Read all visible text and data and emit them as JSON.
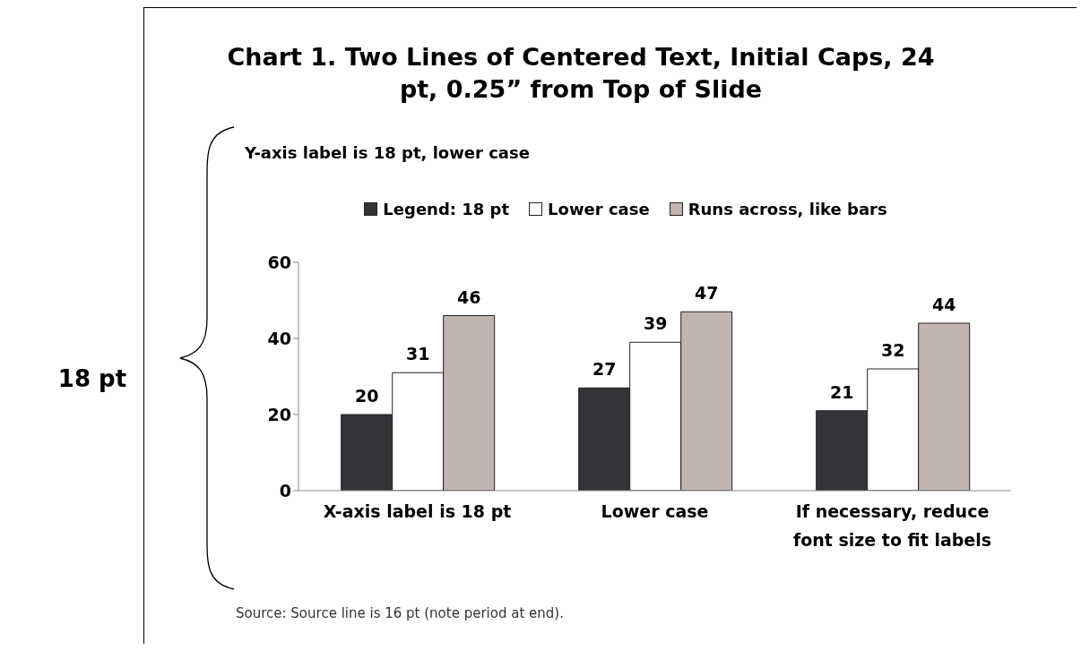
{
  "chart_data": {
    "type": "bar",
    "title": "Chart 1. Two Lines of Centered Text, Initial Caps, 24 pt, 0.25” from Top of Slide",
    "categories": [
      "X-axis label is 18 pt",
      "Lower case",
      "If necessary, reduce font size to fit labels"
    ],
    "series": [
      {
        "name": "Legend: 18 pt",
        "color": "#333338",
        "values": [
          20,
          27,
          21
        ]
      },
      {
        "name": "Lower case",
        "color": "#ffffff",
        "values": [
          31,
          39,
          32
        ]
      },
      {
        "name": "Runs across, like bars",
        "color": "#c0b5b1",
        "values": [
          46,
          47,
          44
        ]
      }
    ],
    "ylim": [
      0,
      60
    ],
    "yticks": [
      0,
      20,
      40,
      60
    ],
    "grid": false,
    "legend": "top",
    "data_labels": true,
    "annotations": [
      "Y-axis label is 18 pt, lower case",
      "18 pt",
      "Source: Source line is 16 pt (note period at end)."
    ]
  }
}
